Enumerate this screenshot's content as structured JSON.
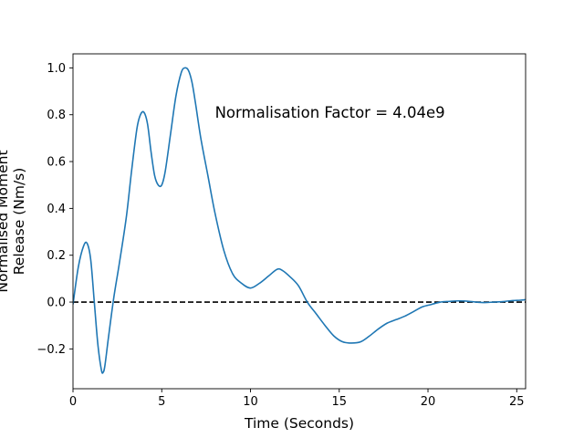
{
  "chart_data": {
    "type": "line",
    "title": "",
    "xlabel": "Time (Seconds)",
    "ylabel_lines": [
      "Normalised Moment",
      "Release (Nm/s)"
    ],
    "xlim": [
      0,
      25.5
    ],
    "ylim": [
      -0.37,
      1.06
    ],
    "x_ticks": [
      0,
      5,
      10,
      15,
      20,
      25
    ],
    "y_ticks": [
      -0.2,
      0.0,
      0.2,
      0.4,
      0.6,
      0.8,
      1.0
    ],
    "y_tick_labels": [
      "−0.2",
      "0.0",
      "0.2",
      "0.4",
      "0.6",
      "0.8",
      "1.0"
    ],
    "grid": false,
    "annotation": {
      "text": "Normalisation Factor = 4.04e9",
      "x": 8.0,
      "y": 0.81
    },
    "reference_line": {
      "y": 0.0,
      "style": "dashed",
      "color": "#000000"
    },
    "series": [
      {
        "color": "#1f77b4",
        "x": [
          0,
          0.3,
          0.6,
          0.8,
          1.0,
          1.2,
          1.4,
          1.6,
          1.7,
          1.8,
          2.0,
          2.3,
          2.6,
          3.0,
          3.3,
          3.6,
          3.8,
          4.0,
          4.2,
          4.4,
          4.6,
          4.8,
          5.0,
          5.2,
          5.5,
          5.8,
          6.1,
          6.3,
          6.5,
          6.7,
          6.9,
          7.2,
          7.6,
          8.0,
          8.5,
          9.0,
          9.5,
          10.0,
          10.5,
          11.0,
          11.5,
          11.8,
          12.2,
          12.7,
          13.2,
          13.7,
          14.2,
          14.7,
          15.2,
          15.7,
          16.2,
          16.7,
          17.2,
          17.7,
          18.2,
          18.7,
          19.2,
          19.7,
          20.2,
          20.7,
          21.2,
          21.7,
          22.2,
          22.7,
          23.2,
          23.7,
          24.2,
          24.7,
          25.2,
          25.5
        ],
        "y": [
          -0.01,
          0.15,
          0.24,
          0.25,
          0.18,
          0.0,
          -0.18,
          -0.29,
          -0.3,
          -0.27,
          -0.15,
          0.02,
          0.16,
          0.36,
          0.56,
          0.74,
          0.8,
          0.81,
          0.76,
          0.64,
          0.54,
          0.5,
          0.5,
          0.56,
          0.72,
          0.88,
          0.98,
          1.0,
          0.99,
          0.94,
          0.85,
          0.7,
          0.54,
          0.38,
          0.22,
          0.12,
          0.08,
          0.06,
          0.08,
          0.11,
          0.14,
          0.135,
          0.11,
          0.07,
          0.0,
          -0.05,
          -0.1,
          -0.145,
          -0.17,
          -0.175,
          -0.17,
          -0.145,
          -0.115,
          -0.09,
          -0.075,
          -0.06,
          -0.04,
          -0.02,
          -0.01,
          0.0,
          0.003,
          0.005,
          0.004,
          0.0,
          -0.002,
          0.0,
          0.002,
          0.006,
          0.008,
          0.01
        ]
      }
    ]
  }
}
